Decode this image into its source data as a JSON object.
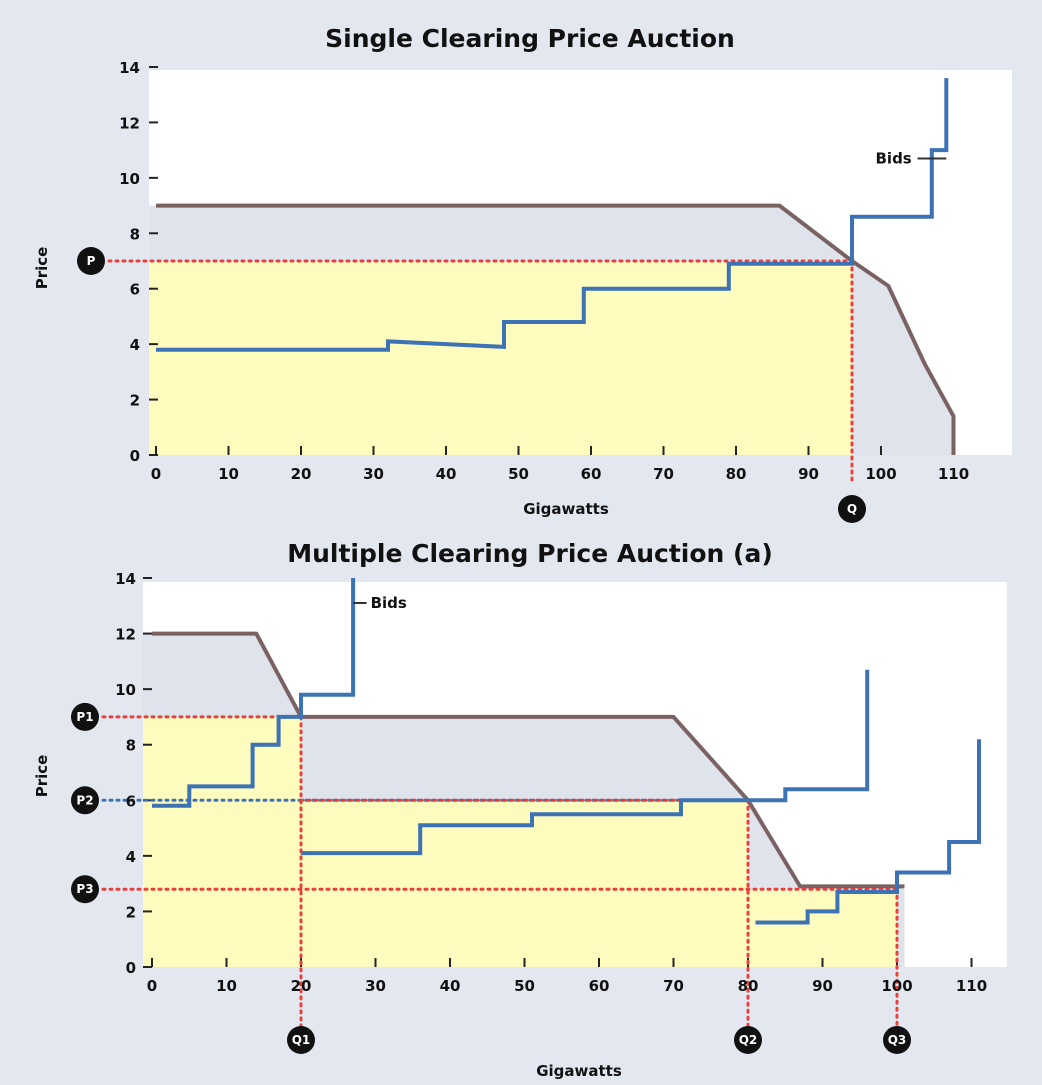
{
  "chart_data": [
    {
      "type": "line",
      "title": "Single Clearing Price Auction",
      "xlabel": "Gigawatts",
      "ylabel": "Price",
      "xlim": [
        0,
        115
      ],
      "ylim": [
        0,
        14
      ],
      "x_ticks": [
        0,
        10,
        20,
        30,
        40,
        50,
        60,
        70,
        80,
        90,
        100,
        110
      ],
      "y_ticks": [
        0,
        2,
        4,
        6,
        8,
        10,
        12,
        14
      ],
      "colors": {
        "demand": "#7a6262",
        "bids": "#3d72b4",
        "fill": "#fdfbbd",
        "clearing": "#e8413c",
        "marker": "#111111"
      },
      "demand": [
        [
          0,
          9
        ],
        [
          86,
          9
        ],
        [
          96,
          7
        ],
        [
          101,
          6.1
        ],
        [
          106,
          3.3
        ],
        [
          110,
          1.4
        ],
        [
          110,
          0
        ]
      ],
      "bids": [
        [
          0,
          3.8
        ],
        [
          32,
          3.8
        ],
        [
          32,
          4.1
        ],
        [
          48,
          3.9
        ],
        [
          48,
          4.8
        ],
        [
          59,
          4.8
        ],
        [
          59,
          6
        ],
        [
          79,
          6
        ],
        [
          79,
          6.9
        ],
        [
          96,
          6.9
        ],
        [
          96,
          8.6
        ],
        [
          107,
          8.6
        ],
        [
          107,
          11
        ],
        [
          109,
          11
        ],
        [
          109,
          13.6
        ]
      ],
      "clearing": {
        "price": 7,
        "quantity": 96,
        "price_label": "P",
        "quantity_label": "Q"
      },
      "bids_label": "Bids",
      "bids_label_at": [
        102,
        10.7
      ],
      "bids_label_end": [
        109,
        10.7
      ]
    },
    {
      "type": "line",
      "title": "Multiple Clearing Price Auction (a)",
      "xlabel": "Gigawatts",
      "ylabel": "Price",
      "xlim": [
        0,
        115
      ],
      "ylim": [
        0,
        14
      ],
      "x_ticks": [
        0,
        10,
        20,
        30,
        40,
        50,
        60,
        70,
        80,
        90,
        100,
        110
      ],
      "y_ticks": [
        0,
        2,
        4,
        6,
        8,
        10,
        12,
        14
      ],
      "colors": {
        "demand": "#7a6262",
        "bids": "#3d72b4",
        "fill": "#fdfbbd",
        "clearing": "#e8413c",
        "marker": "#111111"
      },
      "demand": [
        [
          0,
          12
        ],
        [
          14,
          12
        ],
        [
          20,
          9
        ],
        [
          70,
          9
        ],
        [
          80,
          6
        ],
        [
          87,
          2.9
        ],
        [
          101,
          2.9
        ]
      ],
      "bid_segments": [
        [
          [
            0,
            5.8
          ],
          [
            5,
            5.8
          ],
          [
            5,
            6.5
          ],
          [
            13.5,
            6.5
          ],
          [
            13.5,
            8
          ],
          [
            17,
            8
          ],
          [
            17,
            9
          ],
          [
            20,
            9
          ],
          [
            20,
            9.8
          ],
          [
            27,
            9.8
          ],
          [
            27,
            14
          ]
        ],
        [
          [
            20,
            4.1
          ],
          [
            36,
            4.1
          ],
          [
            36,
            5.1
          ],
          [
            51,
            5.1
          ],
          [
            51,
            5.5
          ],
          [
            71,
            5.5
          ],
          [
            71,
            6
          ],
          [
            85,
            6
          ],
          [
            85,
            6.4
          ],
          [
            96,
            6.4
          ],
          [
            96,
            10.7
          ]
        ],
        [
          [
            81,
            1.6
          ],
          [
            88,
            1.6
          ],
          [
            88,
            2
          ],
          [
            92,
            2
          ],
          [
            92,
            2.7
          ],
          [
            100,
            2.7
          ],
          [
            100,
            3.4
          ],
          [
            107,
            3.4
          ],
          [
            107,
            4.5
          ],
          [
            111,
            4.5
          ],
          [
            111,
            8.2
          ]
        ]
      ],
      "clearing_points": [
        {
          "price": 9,
          "quantity": 20,
          "price_label": "P1",
          "quantity_label": "Q1"
        },
        {
          "price": 6,
          "quantity": 80,
          "price_label": "P2",
          "quantity_label": "Q2"
        },
        {
          "price": 2.8,
          "quantity": 100,
          "price_label": "P3",
          "quantity_label": "Q3"
        }
      ],
      "bids_label": "Bids",
      "bids_label_at": [
        28,
        13.1
      ],
      "bids_label_end": [
        27,
        13.1
      ]
    }
  ]
}
